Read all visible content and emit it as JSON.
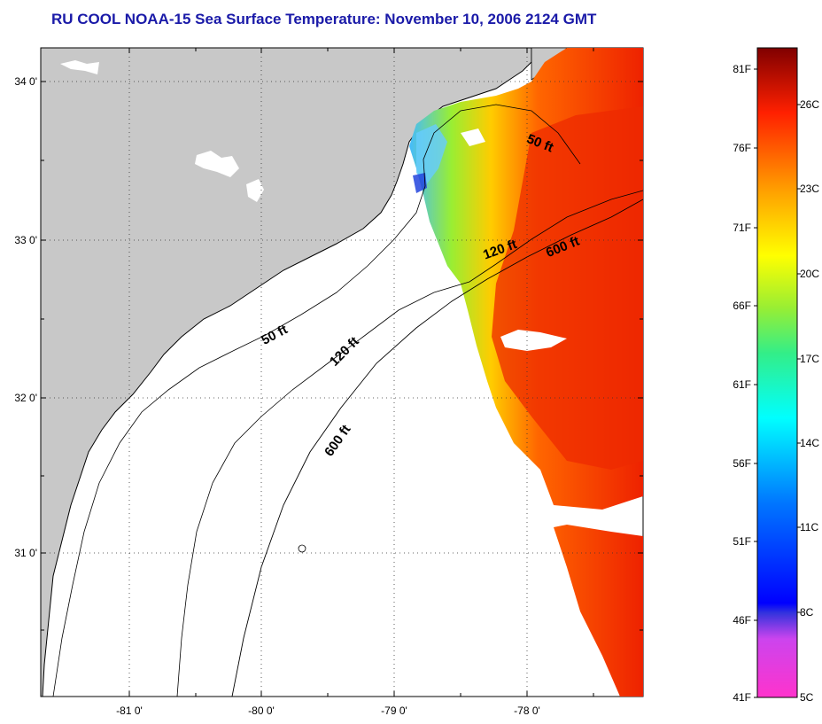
{
  "title": "RU COOL  NOAA-15  Sea Surface Temperature:  November 10, 2006 2124 GMT",
  "map": {
    "lat_labels": [
      "34 0'",
      "33 0'",
      "32 0'",
      "31 0'"
    ],
    "lon_labels": [
      "-81 0'",
      "-80 0'",
      "-79 0'",
      "-78 0'"
    ],
    "contours": {
      "c50_upper": "50 ft",
      "c50_lower": "50 ft",
      "c120_upper": "120 ft",
      "c120_lower": "120 ft",
      "c600_upper": "600 ft",
      "c600_lower": "600 ft"
    },
    "colors": {
      "land": "#c8c8c8",
      "ocean": "#ffffff"
    }
  },
  "colorbar": {
    "fahrenheit": [
      "81F",
      "76F",
      "71F",
      "66F",
      "61F",
      "56F",
      "51F",
      "46F",
      "41F"
    ],
    "celsius": [
      "26C",
      "23C",
      "20C",
      "17C",
      "14C",
      "11C",
      "8C",
      "5C"
    ]
  }
}
